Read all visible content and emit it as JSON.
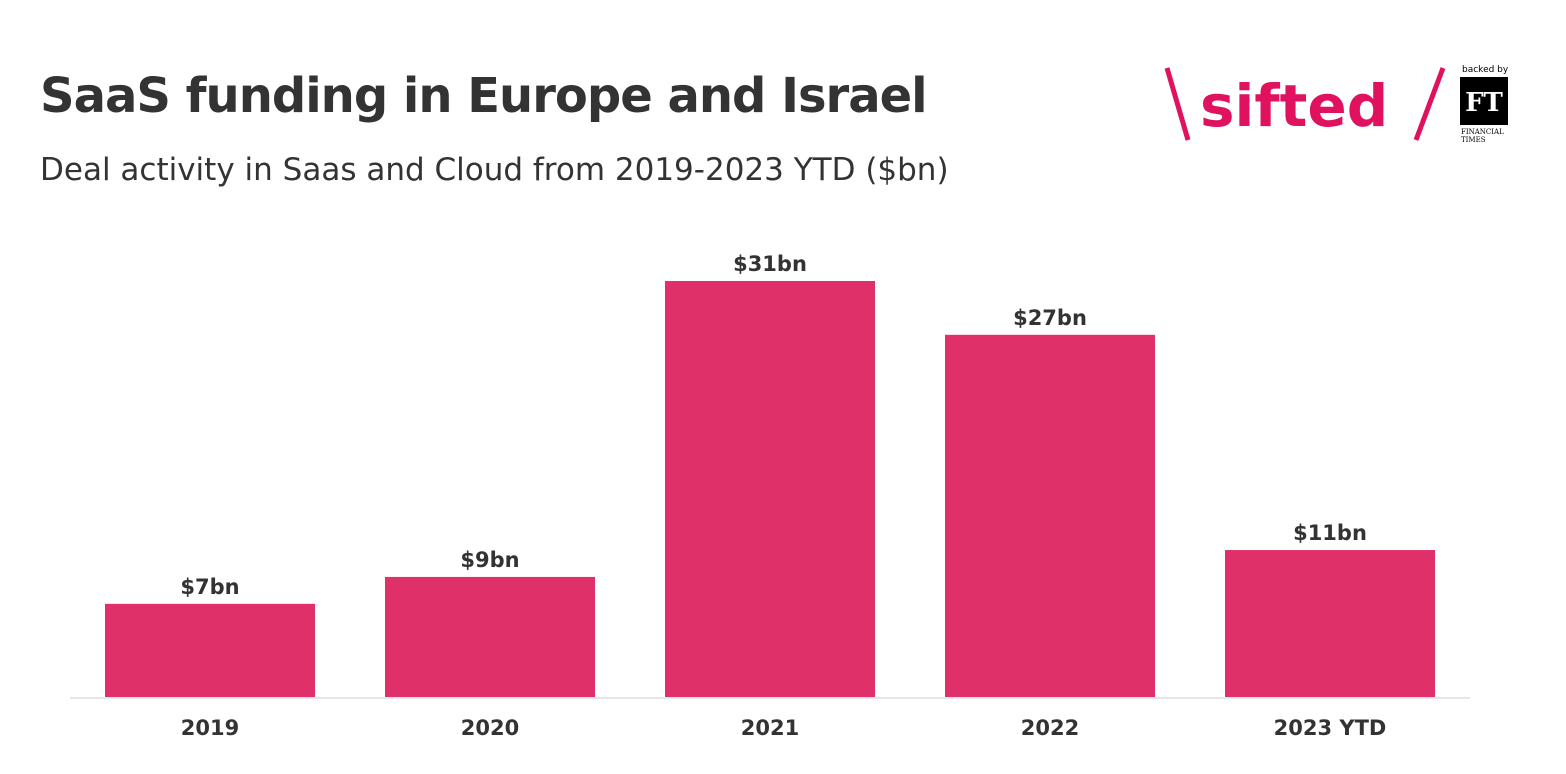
{
  "header": {
    "title": "SaaS funding in Europe and Israel",
    "subtitle": "Deal activity in Saas and Cloud from 2019-2023 YTD ($bn)"
  },
  "logo": {
    "brand": "sifted",
    "backed_by": "backed by",
    "ft_mark": "FT",
    "ft_name_line1": "FINANCIAL",
    "ft_name_line2": "TIMES",
    "brand_color": "#e0115f"
  },
  "chart_data": {
    "type": "bar",
    "title": "SaaS funding in Europe and Israel",
    "subtitle": "Deal activity in Saas and Cloud from 2019-2023 YTD ($bn)",
    "categories": [
      "2019",
      "2020",
      "2021",
      "2022",
      "2023 YTD"
    ],
    "values": [
      7,
      9,
      31,
      27,
      11
    ],
    "data_labels": [
      "$7bn",
      "$9bn",
      "$31bn",
      "$27bn",
      "$11bn"
    ],
    "unit": "$bn",
    "ylim": [
      0,
      31
    ],
    "grid": false,
    "bar_color": "#e0306a",
    "axis_line_color": "#e6e6e6"
  }
}
